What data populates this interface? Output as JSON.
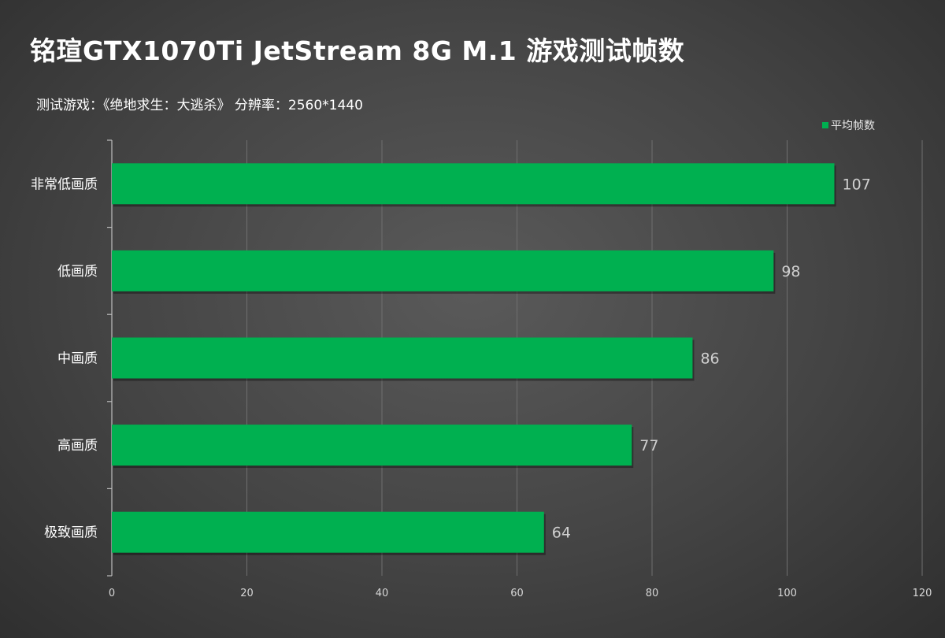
{
  "chart_data": {
    "type": "bar",
    "orientation": "horizontal",
    "title": "铭瑄GTX1070Ti JetStream 8G M.1 游戏测试帧数",
    "subtitle": "测试游戏：《绝地求生：大逃杀》   分辨率：2560*1440",
    "categories": [
      "非常低画质",
      "低画质",
      "中画质",
      "高画质",
      "极致画质"
    ],
    "series": [
      {
        "name": "平均帧数",
        "values": [
          107,
          98,
          86,
          77,
          64
        ],
        "color": "#00b050"
      }
    ],
    "xlim": [
      0,
      120
    ],
    "xticks": [
      0,
      20,
      40,
      60,
      80,
      100,
      120
    ],
    "xlabel": "",
    "ylabel": "",
    "grid": true,
    "legend_position": "top-right",
    "show_data_labels": true
  }
}
